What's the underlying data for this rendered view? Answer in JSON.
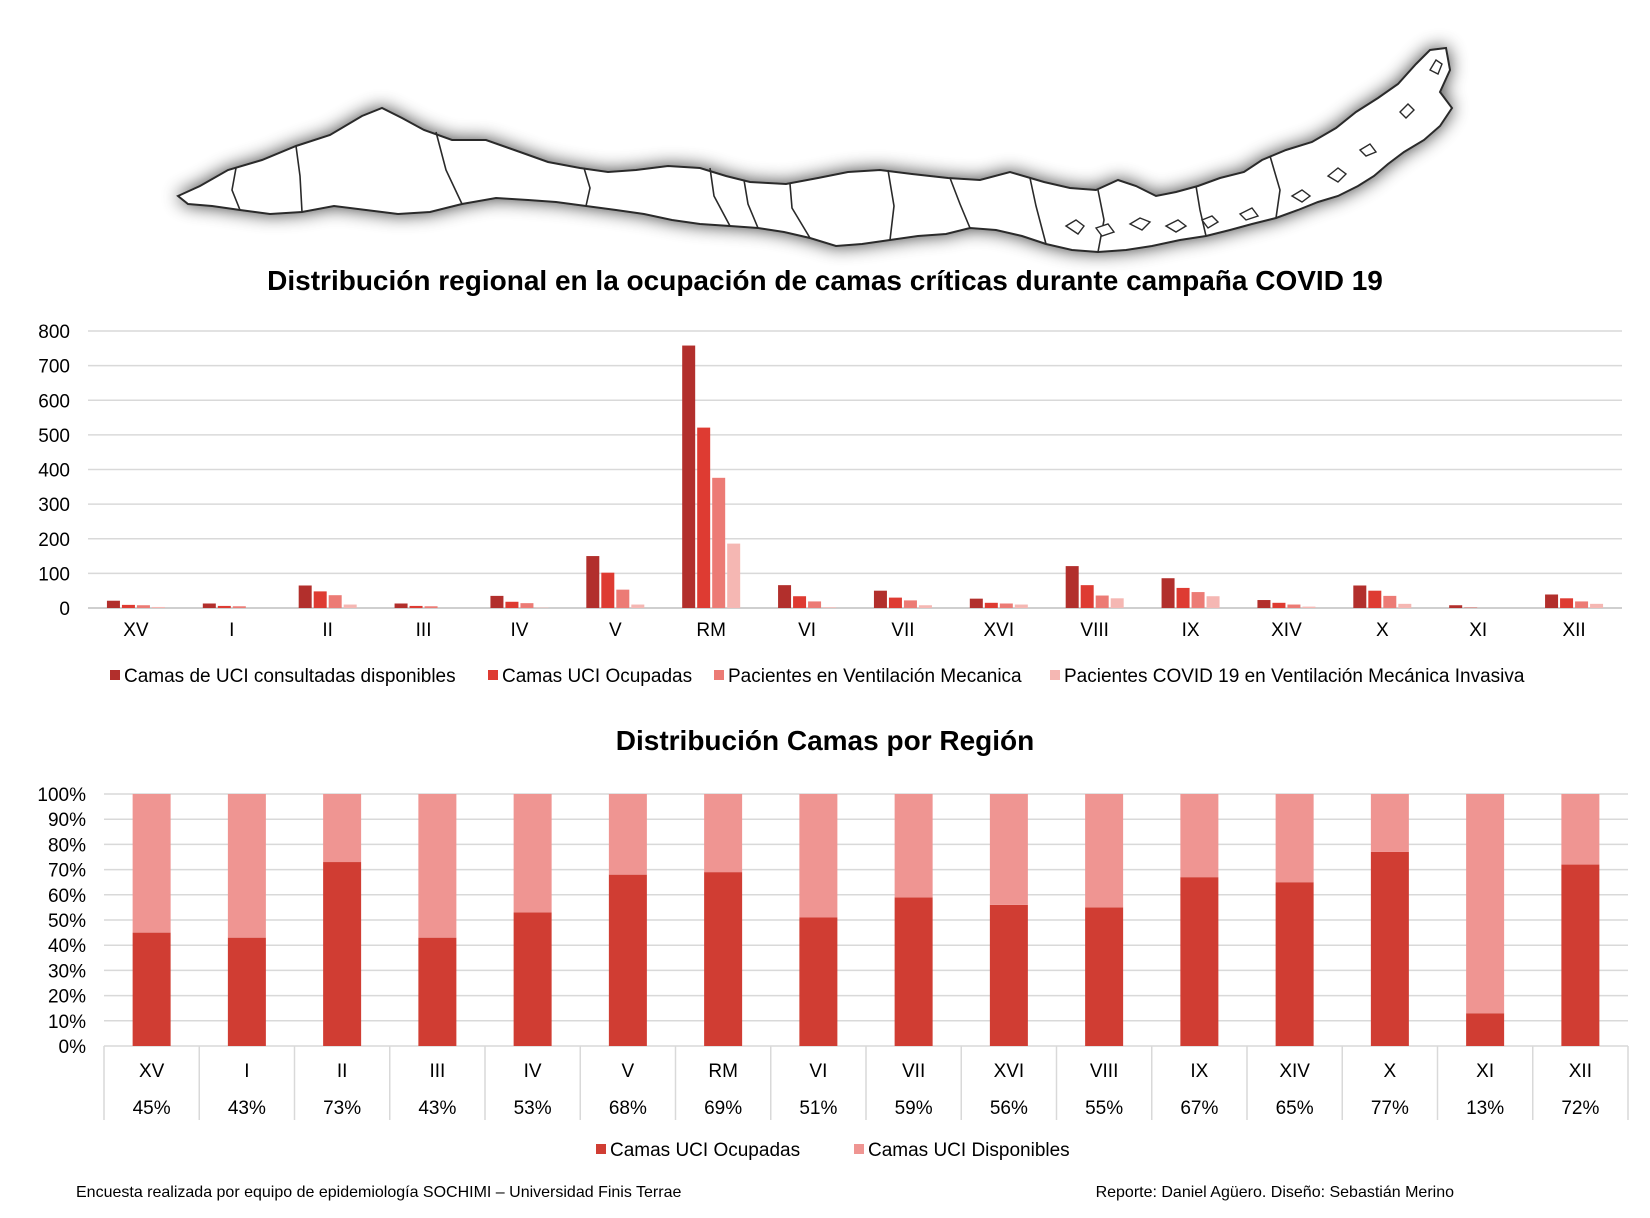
{
  "colors": {
    "series1": "#b22f2c",
    "series2": "#de3b32",
    "series3": "#ec7b75",
    "series4": "#f5b7b3",
    "occupied": "#d03d33",
    "available": "#ef9592",
    "grid": "#d9d9d9",
    "map_fill": "#ffffff",
    "map_stroke": "#2b2b2b"
  },
  "map": {
    "icon": "chile-regions-map"
  },
  "chart_data": [
    {
      "type": "bar",
      "title": "Distribución regional en la ocupación de camas críticas durante campaña COVID 19",
      "categories": [
        "XV",
        "I",
        "II",
        "III",
        "IV",
        "V",
        "RM",
        "VI",
        "VII",
        "XVI",
        "VIII",
        "IX",
        "XIV",
        "X",
        "XI",
        "XII"
      ],
      "ylim": [
        0,
        800
      ],
      "yticks": [
        "0",
        "100",
        "200",
        "300",
        "400",
        "500",
        "600",
        "700",
        "800"
      ],
      "grid": true,
      "legend_position": "bottom",
      "series": [
        {
          "name": "Camas de UCI consultadas disponibles",
          "values": [
            21,
            13,
            65,
            13,
            35,
            150,
            758,
            66,
            50,
            27,
            121,
            86,
            23,
            65,
            8,
            39
          ]
        },
        {
          "name": "Camas UCI Ocupadas",
          "values": [
            9,
            6,
            48,
            6,
            18,
            102,
            521,
            34,
            30,
            15,
            66,
            58,
            15,
            50,
            1,
            28
          ]
        },
        {
          "name": "Pacientes en Ventilación Mecanica",
          "values": [
            8,
            5,
            37,
            5,
            14,
            53,
            376,
            19,
            22,
            13,
            36,
            46,
            10,
            35,
            0,
            19
          ]
        },
        {
          "name": "Pacientes COVID 19 en Ventilación Mecánica Invasiva",
          "values": [
            3,
            0,
            10,
            0,
            1,
            10,
            186,
            2,
            8,
            10,
            28,
            34,
            4,
            12,
            0,
            12
          ]
        }
      ]
    },
    {
      "type": "bar",
      "stacked": true,
      "percent": true,
      "title": "Distribución Camas por Región",
      "categories": [
        "XV",
        "I",
        "II",
        "III",
        "IV",
        "V",
        "RM",
        "VI",
        "VII",
        "XVI",
        "VIII",
        "IX",
        "XIV",
        "X",
        "XI",
        "XII"
      ],
      "ylim": [
        0,
        100
      ],
      "yticks": [
        "0%",
        "10%",
        "20%",
        "30%",
        "40%",
        "50%",
        "60%",
        "70%",
        "80%",
        "90%",
        "100%"
      ],
      "grid": true,
      "legend_position": "bottom",
      "table_labels": [
        "45%",
        "43%",
        "73%",
        "43%",
        "53%",
        "68%",
        "69%",
        "51%",
        "59%",
        "56%",
        "55%",
        "67%",
        "65%",
        "77%",
        "13%",
        "72%"
      ],
      "series": [
        {
          "name": "Camas UCI Ocupadas",
          "values": [
            45,
            43,
            73,
            43,
            53,
            68,
            69,
            51,
            59,
            56,
            55,
            67,
            65,
            77,
            13,
            72
          ]
        },
        {
          "name": "Camas UCI Disponibles",
          "values": [
            55,
            57,
            27,
            57,
            47,
            32,
            31,
            49,
            41,
            44,
            45,
            33,
            35,
            23,
            87,
            28
          ]
        }
      ]
    }
  ],
  "footer": {
    "left": "Encuesta realizada por equipo de epidemiología SOCHIMI – Universidad Finis Terrae",
    "right": "Reporte: Daniel Agüero. Diseño: Sebastián Merino"
  }
}
